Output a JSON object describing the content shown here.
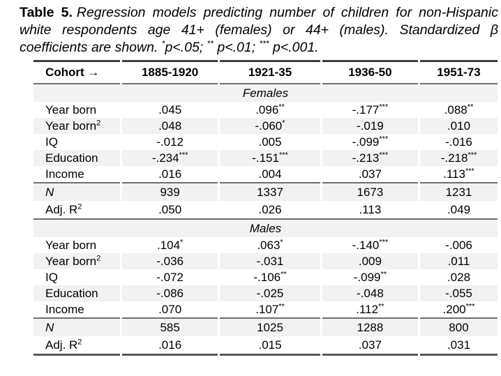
{
  "caption": {
    "label": "Table 5.",
    "body": "Regression models predicting number of children for non-Hispanic white respondents age 41+ (females) or 44+ (males). Standardized β coefficients are shown. ",
    "sig": [
      {
        "stars": "*",
        "text": "p<.05; "
      },
      {
        "stars": "**",
        "text": " p<.01; "
      },
      {
        "stars": "***",
        "text": " p<.001."
      }
    ]
  },
  "colors": {
    "shade": "#f2f2f2",
    "rule_dark": "#3e3e3e",
    "rule_mid": "#6e6e6e",
    "rule_bottom": "#5a5a5a"
  },
  "chart_data": {
    "type": "table",
    "title": "Table 5. Regression models predicting number of children for non-Hispanic white respondents age 41+ (females) or 44+ (males). Standardized β coefficients are shown. *p<.05; ** p<.01; *** p<.001.",
    "header": [
      "Cohort →",
      "1885-1920",
      "1921-35",
      "1936-50",
      "1951-73"
    ],
    "sections": [
      {
        "title": "Females",
        "rows": [
          {
            "label": "Year born",
            "values": [
              ".045",
              ".096**",
              "-.177***",
              ".088**"
            ]
          },
          {
            "label": "Year born",
            "label_sup": "2",
            "values": [
              ".048",
              "-.060*",
              "-.019",
              ".010"
            ]
          },
          {
            "label": "IQ",
            "values": [
              "-.012",
              ".005",
              "-.099***",
              "-.016"
            ]
          },
          {
            "label": "Education",
            "values": [
              "-.234***",
              "-.151***",
              "-.213***",
              "-.218***"
            ]
          },
          {
            "label": "Income",
            "values": [
              ".016",
              ".004",
              ".037",
              ".113***"
            ]
          }
        ],
        "stats": [
          {
            "label": "N",
            "italic": true,
            "values": [
              "939",
              "1337",
              "1673",
              "1231"
            ]
          },
          {
            "label": "Adj. R",
            "label_sup": "2",
            "values": [
              ".050",
              ".026",
              ".113",
              ".049"
            ]
          }
        ]
      },
      {
        "title": "Males",
        "rows": [
          {
            "label": "Year born",
            "values": [
              ".104*",
              ".063*",
              "-.140***",
              "-.006"
            ]
          },
          {
            "label": "Year born",
            "label_sup": "2",
            "values": [
              "-.036",
              "-.031",
              ".009",
              ".011"
            ]
          },
          {
            "label": "IQ",
            "values": [
              "-.072",
              "-.106**",
              "-.099**",
              ".028"
            ]
          },
          {
            "label": "Education",
            "values": [
              "-.086",
              "-.025",
              "-.048",
              "-.055"
            ]
          },
          {
            "label": "Income",
            "values": [
              ".070",
              ".107**",
              ".112**",
              ".200***"
            ]
          }
        ],
        "stats": [
          {
            "label": "N",
            "italic": true,
            "values": [
              "585",
              "1025",
              "1288",
              "800"
            ]
          },
          {
            "label": "Adj. R",
            "label_sup": "2",
            "values": [
              ".016",
              ".015",
              ".037",
              ".031"
            ]
          }
        ]
      }
    ]
  }
}
